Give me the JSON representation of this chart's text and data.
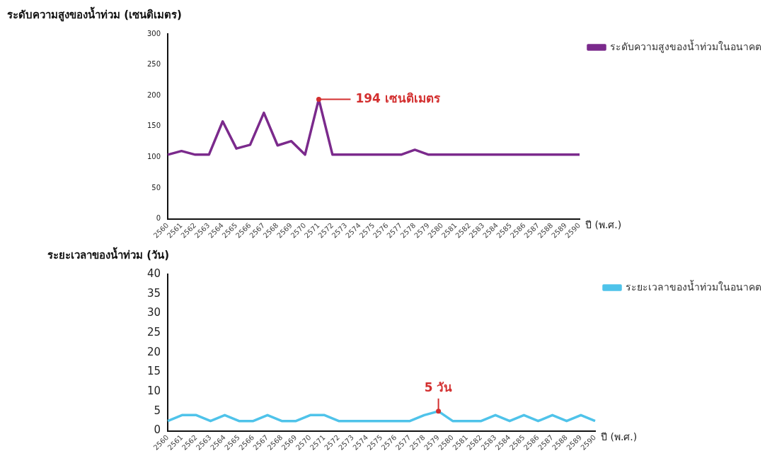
{
  "chart_data": [
    {
      "type": "line",
      "ylabel": "ระดับความสูงของน้ำท่วม (เซนติเมตร)",
      "xlabel": "ปี (พ.ศ.)",
      "categories": [
        "2560",
        "2561",
        "2562",
        "2563",
        "2564",
        "2565",
        "2566",
        "2567",
        "2568",
        "2569",
        "2570",
        "2571",
        "2572",
        "2573",
        "2574",
        "2575",
        "2576",
        "2577",
        "2578",
        "2579",
        "2580",
        "2581",
        "2582",
        "2583",
        "2584",
        "2585",
        "2586",
        "2587",
        "2588",
        "2589",
        "2590"
      ],
      "series": [
        {
          "name": "ระดับความสูงของน้ำท่วมในอนาคต",
          "color": "#7b2a8c",
          "values": [
            104,
            110,
            104,
            104,
            158,
            114,
            120,
            172,
            119,
            126,
            104,
            194,
            104,
            104,
            104,
            104,
            104,
            104,
            112,
            104,
            104,
            104,
            104,
            104,
            104,
            104,
            104,
            104,
            104,
            104,
            104
          ]
        }
      ],
      "ylim": [
        0,
        300
      ],
      "yticks": [
        0,
        50,
        100,
        150,
        200,
        250,
        300
      ],
      "grid": false,
      "legend": "top right",
      "marker": "none",
      "line_style": "solid",
      "annotations": [
        {
          "text": "194 เซนติเมตร",
          "x": "2571",
          "y": 194
        }
      ]
    },
    {
      "type": "line",
      "ylabel": "ระยะเวลาของน้ำท่วม (วัน)",
      "xlabel": "ปี (พ.ศ.)",
      "categories": [
        "2560",
        "2561",
        "2562",
        "2563",
        "2564",
        "2565",
        "2566",
        "2567",
        "2568",
        "2569",
        "2570",
        "2571",
        "2572",
        "2573",
        "2574",
        "2575",
        "2576",
        "2577",
        "2578",
        "2579",
        "2580",
        "2581",
        "2582",
        "2583",
        "2584",
        "2585",
        "2586",
        "2587",
        "2588",
        "2589",
        "2590"
      ],
      "series": [
        {
          "name": "ระยะเวลาของน้ำท่วมในอนาคต",
          "color": "#4fc3ea",
          "values": [
            2.5,
            4,
            4,
            2.5,
            4,
            2.5,
            2.5,
            4,
            2.5,
            2.5,
            4,
            4,
            2.5,
            2.5,
            2.5,
            2.5,
            2.5,
            2.5,
            4,
            5,
            2.5,
            2.5,
            2.5,
            4,
            2.5,
            4,
            2.5,
            4,
            2.5,
            4,
            2.5
          ]
        }
      ],
      "ylim": [
        0,
        40
      ],
      "yticks": [
        0,
        5,
        10,
        15,
        20,
        25,
        30,
        35,
        40
      ],
      "grid": false,
      "legend": "top right",
      "marker": "none",
      "line_style": "solid",
      "annotations": [
        {
          "text": "5 วัน",
          "x": "2579",
          "y": 5
        }
      ]
    }
  ]
}
